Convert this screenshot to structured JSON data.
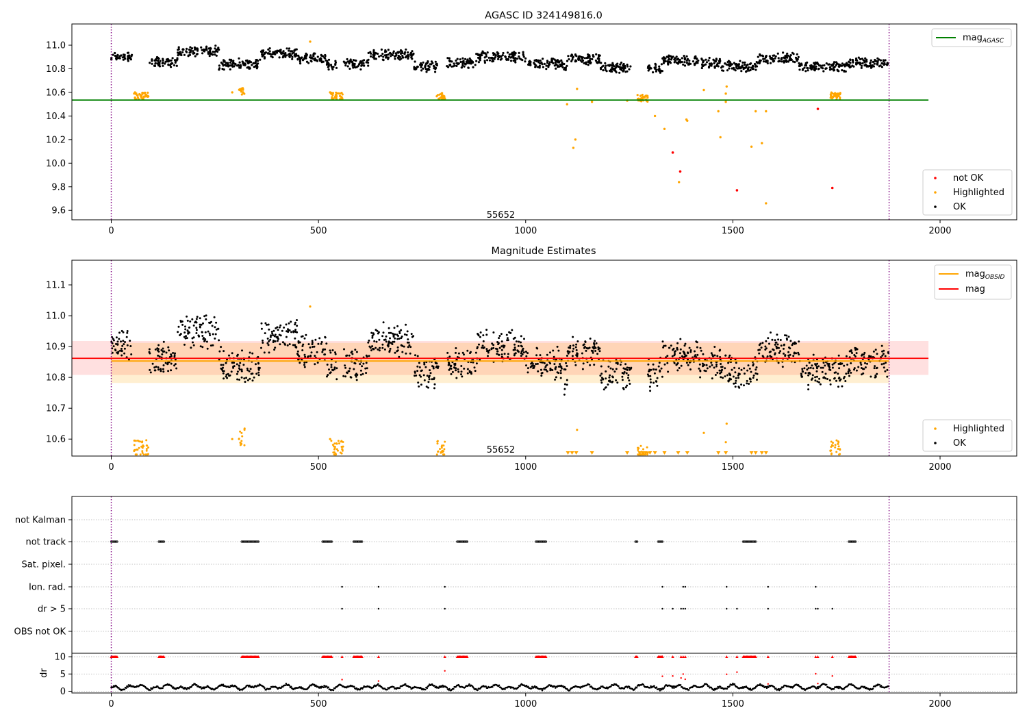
{
  "chart_data": [
    {
      "type": "scatter",
      "title": "AGASC ID 324149816.0",
      "xlim": [
        -95,
        2185
      ],
      "ylim": [
        9.52,
        11.18
      ],
      "x_ticks": [
        0,
        500,
        1000,
        1500,
        2000
      ],
      "y_ticks": [
        9.6,
        9.8,
        10.0,
        10.2,
        10.4,
        10.6,
        10.8,
        11.0
      ],
      "annotation": {
        "text": "55652",
        "x": 940,
        "y": 9.56
      },
      "vlines": [
        0,
        1877
      ],
      "hlines": [
        {
          "name": "mag_AGASC",
          "y": 10.535,
          "x_range": [
            -95,
            1972
          ],
          "color": "#008000"
        }
      ],
      "legend_top": {
        "placement": "top-right",
        "entries": [
          {
            "label": "mag",
            "sub": "AGASC",
            "color": "#008000"
          }
        ]
      },
      "legend_bottom": {
        "placement": "bottom-right",
        "entries": [
          {
            "label": "not OK",
            "color": "#ff0000"
          },
          {
            "label": "Highlighted",
            "color": "#ffa500"
          },
          {
            "label": "OK",
            "color": "#000000"
          }
        ]
      },
      "ok_segments": [
        {
          "x0": 0,
          "x1": 50,
          "base": 10.9
        },
        {
          "x0": 90,
          "x1": 160,
          "base": 10.86
        },
        {
          "x0": 160,
          "x1": 260,
          "base": 10.95
        },
        {
          "x0": 260,
          "x1": 360,
          "base": 10.84
        },
        {
          "x0": 360,
          "x1": 450,
          "base": 10.93
        },
        {
          "x0": 450,
          "x1": 520,
          "base": 10.89
        },
        {
          "x0": 520,
          "x1": 545,
          "base": 10.84
        },
        {
          "x0": 560,
          "x1": 620,
          "base": 10.84
        },
        {
          "x0": 620,
          "x1": 730,
          "base": 10.92
        },
        {
          "x0": 730,
          "x1": 790,
          "base": 10.82
        },
        {
          "x0": 810,
          "x1": 880,
          "base": 10.85
        },
        {
          "x0": 880,
          "x1": 1000,
          "base": 10.9
        },
        {
          "x0": 1000,
          "x1": 1090,
          "base": 10.84
        },
        {
          "x0": 1090,
          "x1": 1100,
          "base": 10.8
        },
        {
          "x0": 1100,
          "x1": 1180,
          "base": 10.88
        },
        {
          "x0": 1180,
          "x1": 1255,
          "base": 10.81
        },
        {
          "x0": 1295,
          "x1": 1330,
          "base": 10.81
        },
        {
          "x0": 1330,
          "x1": 1420,
          "base": 10.87
        },
        {
          "x0": 1420,
          "x1": 1470,
          "base": 10.85
        },
        {
          "x0": 1470,
          "x1": 1560,
          "base": 10.82
        },
        {
          "x0": 1560,
          "x1": 1660,
          "base": 10.89
        },
        {
          "x0": 1660,
          "x1": 1780,
          "base": 10.82
        },
        {
          "x0": 1780,
          "x1": 1877,
          "base": 10.85
        }
      ],
      "highlight_clusters": [
        {
          "x0": 55,
          "x1": 90,
          "y": 10.57
        },
        {
          "x0": 308,
          "x1": 322,
          "y": 10.61
        },
        {
          "x0": 530,
          "x1": 560,
          "y": 10.57
        },
        {
          "x0": 785,
          "x1": 805,
          "y": 10.57
        },
        {
          "x0": 1270,
          "x1": 1295,
          "y": 10.55
        },
        {
          "x0": 1735,
          "x1": 1760,
          "y": 10.57
        }
      ],
      "highlighted_points": [
        [
          292,
          10.6
        ],
        [
          480,
          11.03
        ],
        [
          528,
          10.6
        ],
        [
          1100,
          10.5
        ],
        [
          1115,
          10.13
        ],
        [
          1120,
          10.2
        ],
        [
          1124,
          10.63
        ],
        [
          1160,
          10.52
        ],
        [
          1245,
          10.53
        ],
        [
          1312,
          10.4
        ],
        [
          1335,
          10.29
        ],
        [
          1370,
          9.84
        ],
        [
          1388,
          10.37
        ],
        [
          1390,
          10.36
        ],
        [
          1430,
          10.62
        ],
        [
          1465,
          10.44
        ],
        [
          1470,
          10.22
        ],
        [
          1483,
          10.52
        ],
        [
          1485,
          10.65
        ],
        [
          1483,
          10.59
        ],
        [
          1545,
          10.14
        ],
        [
          1555,
          10.44
        ],
        [
          1570,
          10.17
        ],
        [
          1580,
          9.66
        ],
        [
          1580,
          10.44
        ]
      ],
      "not_ok_points": [
        [
          1355,
          10.09
        ],
        [
          1373,
          9.93
        ],
        [
          1510,
          9.77
        ],
        [
          1705,
          10.46
        ],
        [
          1740,
          9.79
        ]
      ]
    },
    {
      "type": "scatter",
      "title": "Magnitude Estimates",
      "xlim": [
        -95,
        2185
      ],
      "ylim": [
        10.545,
        11.18
      ],
      "x_ticks": [
        0,
        500,
        1000,
        1500,
        2000
      ],
      "y_ticks": [
        10.6,
        10.7,
        10.8,
        10.9,
        11.0,
        11.1
      ],
      "annotation": {
        "text": "55652",
        "x": 940,
        "y": 10.565
      },
      "vlines": [
        0,
        1877
      ],
      "mag": 10.862,
      "mag_band": [
        10.808,
        10.918
      ],
      "mag_obsid": 10.853,
      "mag_obsid_band": [
        10.782,
        10.912
      ],
      "band_x_range": [
        -95,
        1972
      ],
      "obsid_x_range": [
        0,
        1877
      ],
      "legend_top": {
        "placement": "top-right",
        "entries": [
          {
            "label": "mag",
            "sub": "OBSID",
            "color": "#ffa500"
          },
          {
            "label": "mag",
            "color": "#ff0000"
          }
        ]
      },
      "legend_bottom": {
        "placement": "bottom-right",
        "entries": [
          {
            "label": "Highlighted",
            "color": "#ffa500"
          },
          {
            "label": "OK",
            "color": "#000000"
          }
        ]
      },
      "lower_limit_markers_x": [
        1102,
        1112,
        1122,
        1160,
        1245,
        1275,
        1282,
        1290,
        1300,
        1312,
        1335,
        1368,
        1390,
        1465,
        1483,
        1545,
        1555,
        1570,
        1580
      ]
    },
    {
      "type": "scatter",
      "title": "",
      "xlim": [
        -95,
        2185
      ],
      "x_ticks": [
        0,
        500,
        1000,
        1500,
        2000
      ],
      "flag_categories": [
        "not Kalman",
        "not track",
        "Sat. pixel.",
        "Ion. rad.",
        "dr > 5",
        "OBS not OK"
      ],
      "vlines": [
        0,
        1877
      ],
      "not_track_ranges": [
        [
          0,
          15
        ],
        [
          115,
          128
        ],
        [
          315,
          355
        ],
        [
          510,
          532
        ],
        [
          585,
          605
        ],
        [
          835,
          860
        ],
        [
          1025,
          1050
        ],
        [
          1265,
          1270
        ],
        [
          1320,
          1330
        ],
        [
          1525,
          1555
        ],
        [
          1780,
          1797
        ]
      ],
      "ion_rad_x": [
        557,
        645,
        805,
        1330,
        1380,
        1385,
        1485,
        1585,
        1700
      ],
      "dr5_x": [
        557,
        645,
        805,
        1330,
        1355,
        1375,
        1380,
        1385,
        1485,
        1510,
        1585,
        1700,
        1705,
        1740
      ],
      "dr_panel": {
        "ylabel": "dr",
        "ylim": [
          -0.5,
          11
        ],
        "y_ticks": [
          0,
          5,
          10
        ]
      }
    }
  ]
}
